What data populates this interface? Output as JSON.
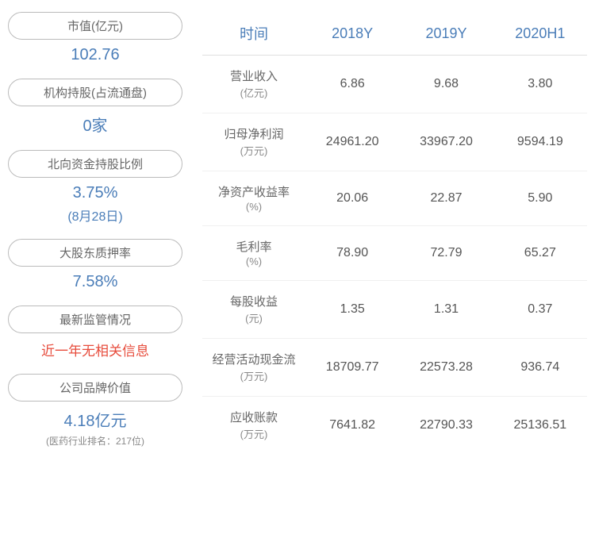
{
  "left_stats": [
    {
      "label": "市值(亿元)",
      "value": "102.76",
      "type": "normal"
    },
    {
      "label": "机构持股(占流通盘)",
      "value": "0家",
      "type": "normal"
    },
    {
      "label": "北向资金持股比例",
      "value": "3.75%",
      "sub": "(8月28日)",
      "type": "with_sub"
    },
    {
      "label": "大股东质押率",
      "value": "7.58%",
      "type": "normal"
    },
    {
      "label": "最新监管情况",
      "value": "近一年无相关信息",
      "type": "warning"
    },
    {
      "label": "公司品牌价值",
      "value": "4.18亿元",
      "sub": "(医药行业排名：217位)",
      "type": "brand"
    }
  ],
  "table": {
    "headers": [
      "时间",
      "2018Y",
      "2019Y",
      "2020H1"
    ],
    "rows": [
      {
        "label": "营业收入",
        "unit": "(亿元)",
        "values": [
          "6.86",
          "9.68",
          "3.80"
        ]
      },
      {
        "label": "归母净利润",
        "unit": "(万元)",
        "values": [
          "24961.20",
          "33967.20",
          "9594.19"
        ]
      },
      {
        "label": "净资产收益率",
        "unit": "(%)",
        "values": [
          "20.06",
          "22.87",
          "5.90"
        ]
      },
      {
        "label": "毛利率",
        "unit": "(%)",
        "values": [
          "78.90",
          "72.79",
          "65.27"
        ]
      },
      {
        "label": "每股收益",
        "unit": "(元)",
        "values": [
          "1.35",
          "1.31",
          "0.37"
        ]
      },
      {
        "label": "经营活动现金流",
        "unit": "(万元)",
        "values": [
          "18709.77",
          "22573.28",
          "936.74"
        ]
      },
      {
        "label": "应收账款",
        "unit": "(万元)",
        "values": [
          "7641.82",
          "22790.33",
          "25136.51"
        ]
      }
    ]
  },
  "colors": {
    "accent": "#4a7db8",
    "warning": "#e74c3c",
    "text_muted": "#666",
    "border": "#bbb"
  }
}
